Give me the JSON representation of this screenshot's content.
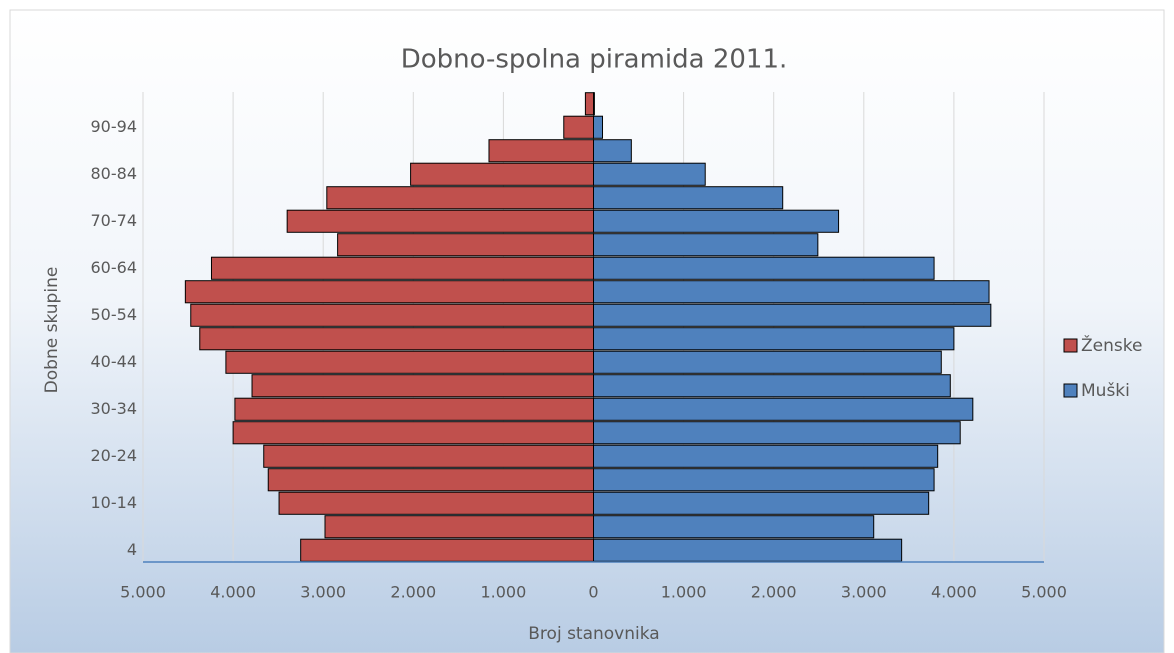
{
  "chart_data": {
    "type": "pyramid",
    "title": "Dobno-spolna piramida 2011.",
    "x_label": "Broj stanovnika",
    "y_label": "Dobne skupine",
    "categories": [
      "4",
      null,
      "10-14",
      null,
      "20-24",
      null,
      "30-34",
      null,
      "40-44",
      null,
      "50-54",
      null,
      "60-64",
      null,
      "70-74",
      null,
      "80-84",
      null,
      "90-94",
      null
    ],
    "series": [
      {
        "name": "Ženske",
        "color": "#c0504d",
        "values": [
          -3250,
          -2980,
          -3490,
          -3610,
          -3660,
          -4000,
          -3980,
          -3790,
          -4080,
          -4370,
          -4470,
          -4530,
          -4240,
          -2840,
          -3400,
          -2960,
          -2030,
          -1160,
          -330,
          -90
        ]
      },
      {
        "name": "Muški",
        "color": "#4f81bd",
        "values": [
          3420,
          3110,
          3720,
          3780,
          3820,
          4070,
          4210,
          3960,
          3860,
          4000,
          4410,
          4390,
          3780,
          2490,
          2720,
          2100,
          1240,
          420,
          100,
          10
        ]
      }
    ],
    "xlim": [
      -5000,
      5000
    ],
    "xticks": [
      {
        "value": -5000,
        "label": "5.000"
      },
      {
        "value": -4000,
        "label": "4.000"
      },
      {
        "value": -3000,
        "label": "3.000"
      },
      {
        "value": -2000,
        "label": "2.000"
      },
      {
        "value": -1000,
        "label": "1.000"
      },
      0,
      {
        "value": 1000,
        "label": "1.000"
      },
      {
        "value": 2000,
        "label": "2.000"
      },
      {
        "value": 3000,
        "label": "3.000"
      },
      {
        "value": 4000,
        "label": "4.000"
      },
      {
        "value": 5000,
        "label": "5.000"
      }
    ],
    "grid": true,
    "legend": "right"
  }
}
